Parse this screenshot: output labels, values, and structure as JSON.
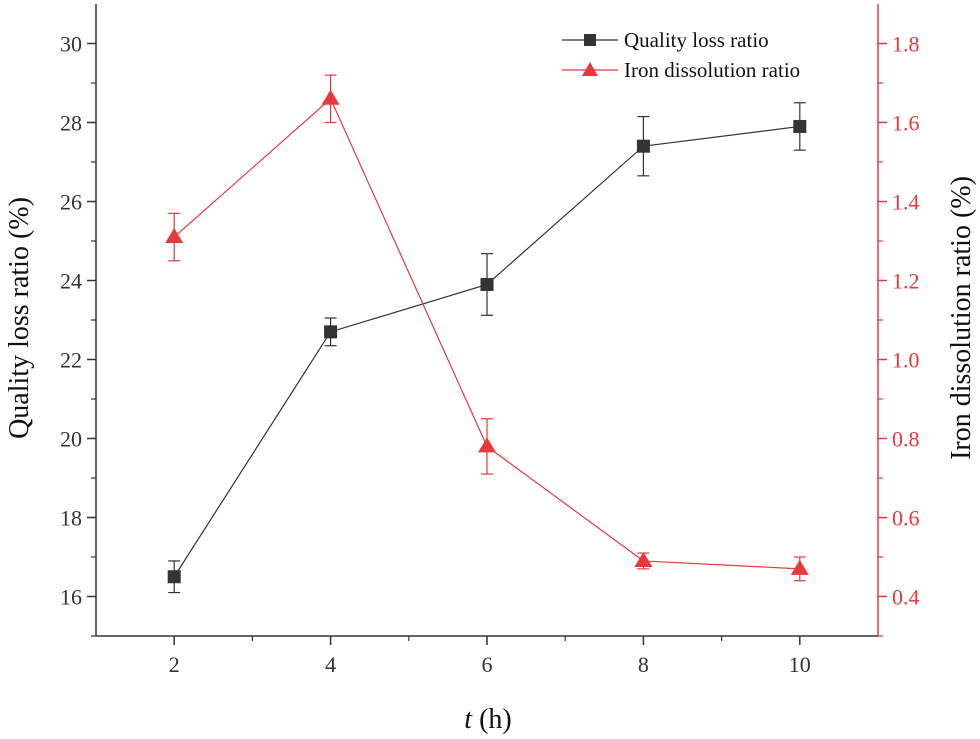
{
  "chart_data": {
    "type": "line",
    "xlabel_italic": "t",
    "xlabel_unit": " (h)",
    "ylabel_left": "Quality loss ratio (%)",
    "ylabel_right": "Iron dissolution ratio (%)",
    "x": [
      2,
      4,
      6,
      8,
      10
    ],
    "x_ticks": [
      2,
      4,
      6,
      8,
      10
    ],
    "x_minor_ticks": [
      3,
      5,
      7,
      9
    ],
    "xlim": [
      1,
      11
    ],
    "ylim_left": [
      15,
      31
    ],
    "ylim_right": [
      0.3,
      1.9
    ],
    "y_left_ticks": [
      16,
      18,
      20,
      22,
      24,
      26,
      28,
      30
    ],
    "y_right_ticks": [
      0.4,
      0.6,
      0.8,
      1.0,
      1.2,
      1.4,
      1.6,
      1.8
    ],
    "legend_position": "top-right",
    "grid": false,
    "series": [
      {
        "name": "Quality loss ratio",
        "axis": "left",
        "color": "#333333",
        "marker": "square",
        "values": [
          16.5,
          22.7,
          23.9,
          27.4,
          27.9
        ],
        "errors": [
          0.4,
          0.35,
          0.78,
          0.75,
          0.6
        ]
      },
      {
        "name": "Iron dissolution ratio",
        "axis": "right",
        "color": "#e8383b",
        "marker": "triangle",
        "values": [
          1.31,
          1.66,
          0.78,
          0.49,
          0.47
        ],
        "errors": [
          0.06,
          0.06,
          0.07,
          0.02,
          0.03
        ]
      }
    ]
  }
}
